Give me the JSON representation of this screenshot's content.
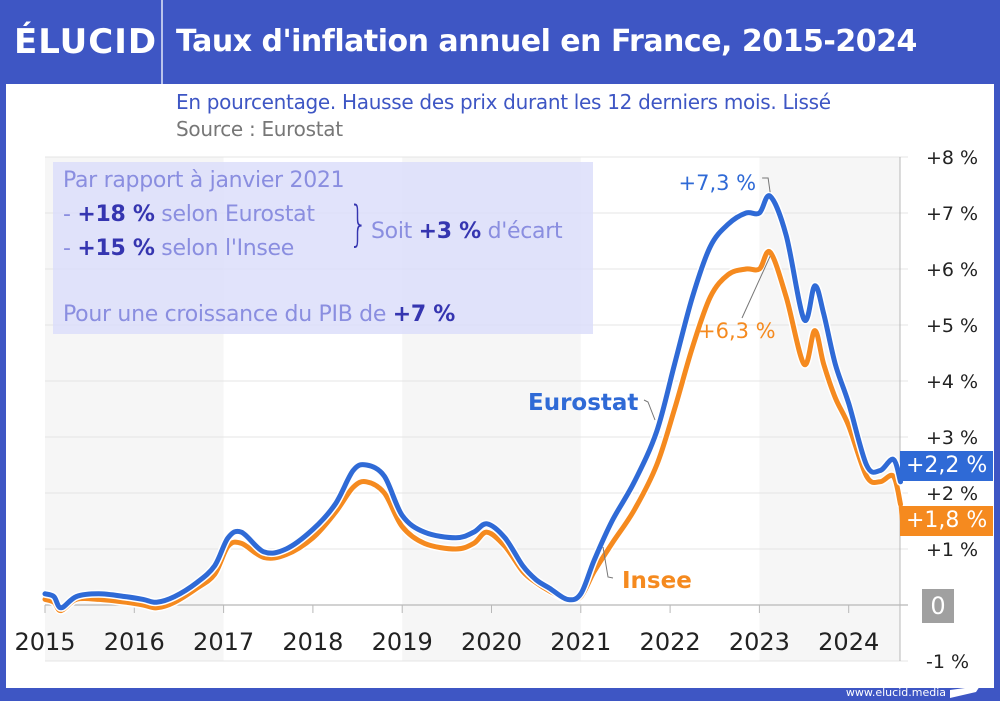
{
  "header": {
    "logo": "ÉLUCID",
    "title": "Taux d'inflation annuel en France, 2015-2024"
  },
  "subtitle": "En pourcentage. Hausse des prix durant les 12 derniers mois. Lissé",
  "source": "Source : Eurostat",
  "infobox": {
    "line1": "Par rapport à janvier 2021",
    "eurostat_prefix": "- ",
    "eurostat_value": "+18 %",
    "eurostat_suffix": " selon Eurostat",
    "insee_prefix": "- ",
    "insee_value": "+15 %",
    "insee_suffix": " selon l'Insee",
    "brace": "}",
    "gap_prefix": "Soit ",
    "gap_value": "+3 %",
    "gap_suffix": " d'écart",
    "pib_prefix": "Pour une croissance du PIB de ",
    "pib_value": "+7 %"
  },
  "badges": {
    "eurostat_last": "+2,2 %",
    "insee_last": "+1,8 %",
    "zero": "0"
  },
  "footer": {
    "url": "www.elucid.media"
  },
  "colors": {
    "brand": "#3e56c4",
    "eurostat": "#2f6ad6",
    "insee": "#f58a1f",
    "negative": "#d0222a",
    "zero_badge": "#a0a0a0"
  },
  "chart_data": {
    "type": "line",
    "title": "Taux d'inflation annuel en France, 2015-2024",
    "subtitle": "En pourcentage. Hausse des prix durant les 12 derniers mois. Lissé",
    "xlabel": "",
    "ylabel": "",
    "xlim": [
      2015,
      2024.6
    ],
    "ylim": [
      -1,
      8
    ],
    "x_ticks": [
      2015,
      2016,
      2017,
      2018,
      2019,
      2020,
      2021,
      2022,
      2023,
      2024
    ],
    "x_tick_labels": [
      "2015",
      "2016",
      "2017",
      "2018",
      "2019",
      "2020",
      "2021",
      "2022",
      "2023",
      "2024"
    ],
    "y_ticks": [
      -1,
      0,
      1,
      2,
      3,
      4,
      5,
      6,
      7,
      8
    ],
    "y_tick_labels": [
      "-1 %",
      "0",
      "+1 %",
      "+2 %",
      "+3 %",
      "+4 %",
      "+5 %",
      "+6 %",
      "+7 %",
      "+8 %"
    ],
    "grid": true,
    "legend": "inline labels",
    "series": [
      {
        "name": "Eurostat",
        "color": "#2f6ad6",
        "x": [
          2015.0,
          2015.1,
          2015.18,
          2015.35,
          2015.6,
          2015.9,
          2016.1,
          2016.25,
          2016.45,
          2016.7,
          2016.9,
          2017.05,
          2017.2,
          2017.45,
          2017.7,
          2018.0,
          2018.25,
          2018.45,
          2018.6,
          2018.8,
          2019.0,
          2019.25,
          2019.6,
          2019.8,
          2019.95,
          2020.15,
          2020.35,
          2020.5,
          2020.65,
          2020.85,
          2021.0,
          2021.15,
          2021.35,
          2021.6,
          2021.85,
          2022.05,
          2022.25,
          2022.45,
          2022.65,
          2022.85,
          2023.0,
          2023.12,
          2023.3,
          2023.5,
          2023.62,
          2023.72,
          2023.85,
          2024.0,
          2024.2,
          2024.35,
          2024.5,
          2024.58
        ],
        "values": [
          0.2,
          0.15,
          -0.05,
          0.15,
          0.2,
          0.15,
          0.1,
          0.05,
          0.15,
          0.4,
          0.7,
          1.2,
          1.3,
          0.95,
          1.0,
          1.35,
          1.8,
          2.4,
          2.5,
          2.3,
          1.6,
          1.3,
          1.2,
          1.3,
          1.45,
          1.2,
          0.7,
          0.45,
          0.3,
          0.1,
          0.2,
          0.8,
          1.5,
          2.2,
          3.1,
          4.3,
          5.5,
          6.4,
          6.8,
          7.0,
          7.0,
          7.3,
          6.6,
          5.1,
          5.7,
          5.2,
          4.3,
          3.6,
          2.5,
          2.4,
          2.6,
          2.2
        ]
      },
      {
        "name": "Insee",
        "color": "#f58a1f",
        "x": [
          2015.0,
          2015.1,
          2015.18,
          2015.35,
          2015.6,
          2015.9,
          2016.1,
          2016.25,
          2016.45,
          2016.7,
          2016.9,
          2017.05,
          2017.2,
          2017.45,
          2017.7,
          2018.0,
          2018.25,
          2018.45,
          2018.6,
          2018.8,
          2019.0,
          2019.25,
          2019.6,
          2019.8,
          2019.95,
          2020.15,
          2020.35,
          2020.5,
          2020.65,
          2020.85,
          2021.0,
          2021.15,
          2021.35,
          2021.6,
          2021.85,
          2022.05,
          2022.25,
          2022.45,
          2022.65,
          2022.85,
          2023.0,
          2023.12,
          2023.3,
          2023.5,
          2023.62,
          2023.72,
          2023.85,
          2024.0,
          2024.2,
          2024.35,
          2024.5,
          2024.58
        ],
        "values": [
          0.1,
          0.05,
          -0.1,
          0.1,
          0.1,
          0.05,
          0.0,
          -0.05,
          0.05,
          0.3,
          0.55,
          1.05,
          1.1,
          0.85,
          0.9,
          1.2,
          1.65,
          2.1,
          2.2,
          2.0,
          1.4,
          1.1,
          1.0,
          1.1,
          1.3,
          1.05,
          0.6,
          0.4,
          0.25,
          0.1,
          0.15,
          0.6,
          1.1,
          1.7,
          2.5,
          3.5,
          4.6,
          5.5,
          5.9,
          6.0,
          6.0,
          6.3,
          5.5,
          4.3,
          4.9,
          4.3,
          3.7,
          3.2,
          2.3,
          2.2,
          2.3,
          1.8
        ]
      }
    ],
    "annotations": [
      {
        "text": "+7,3 %",
        "series": "Eurostat",
        "x": 2023.12,
        "y": 7.3
      },
      {
        "text": "+6,3 %",
        "series": "Insee",
        "x": 2023.12,
        "y": 6.3
      },
      {
        "text": "Eurostat",
        "series": "Eurostat"
      },
      {
        "text": "Insee",
        "series": "Insee"
      },
      {
        "text": "+2,2 %",
        "series": "Eurostat",
        "note": "last value"
      },
      {
        "text": "+1,8 %",
        "series": "Insee",
        "note": "last value"
      }
    ]
  }
}
